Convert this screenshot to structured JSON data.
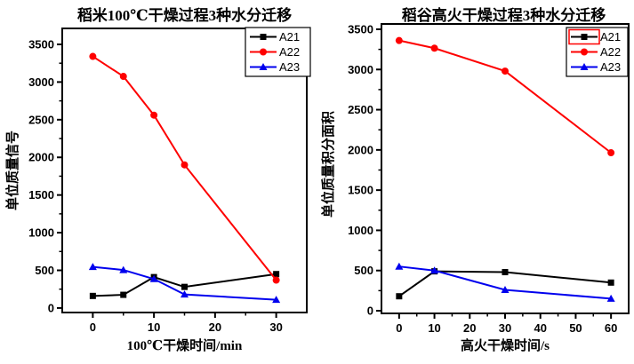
{
  "page": {
    "background": "#ffffff",
    "frame_color": "#000000"
  },
  "chart_data": [
    {
      "type": "line",
      "title": "稻米100℃干燥过程3种水分迁移",
      "xlabel": "100℃干燥时间/min",
      "ylabel": "单位质量信号",
      "x": [
        0,
        5,
        10,
        15,
        30
      ],
      "xticks": [
        0,
        10,
        20,
        30
      ],
      "yticks": [
        0,
        500,
        1000,
        1500,
        2000,
        2500,
        3000,
        3500
      ],
      "xlim": [
        -5,
        35
      ],
      "ylim": [
        -60,
        3712
      ],
      "grid": false,
      "legend": {
        "position": "top-right",
        "entries": [
          "A21",
          "A22",
          "A23"
        ],
        "selected_entry": null
      },
      "series": [
        {
          "name": "A21",
          "color": "#000000",
          "marker": "square",
          "values": [
            160,
            175,
            410,
            280,
            450
          ]
        },
        {
          "name": "A22",
          "color": "#fe0000",
          "marker": "circle",
          "values": [
            3340,
            3075,
            2560,
            1900,
            370
          ]
        },
        {
          "name": "A23",
          "color": "#0000ee",
          "marker": "triangle-up",
          "values": [
            545,
            505,
            385,
            180,
            110
          ]
        }
      ]
    },
    {
      "type": "line",
      "title": "稻谷高火干燥过程3种水分迁移",
      "xlabel": "高火干燥时间/s",
      "ylabel": "单位质量积分面积",
      "x": [
        0,
        10,
        30,
        60
      ],
      "xticks": [
        0,
        10,
        20,
        30,
        40,
        50,
        60
      ],
      "yticks": [
        0,
        500,
        1000,
        1500,
        2000,
        2500,
        3000,
        3500
      ],
      "xlim": [
        -5,
        65
      ],
      "ylim": [
        -33,
        3566
      ],
      "grid": false,
      "legend": {
        "position": "top-right",
        "entries": [
          "A21",
          "A22",
          "A23"
        ],
        "selected_entry": "A21",
        "selection_box_color": "#fe0000"
      },
      "series": [
        {
          "name": "A21",
          "color": "#000000",
          "marker": "square",
          "values": [
            180,
            490,
            480,
            350
          ]
        },
        {
          "name": "A22",
          "color": "#fe0000",
          "marker": "circle",
          "values": [
            3360,
            3265,
            2980,
            1965
          ]
        },
        {
          "name": "A23",
          "color": "#0000ee",
          "marker": "triangle-up",
          "values": [
            550,
            500,
            260,
            150
          ]
        }
      ]
    }
  ]
}
